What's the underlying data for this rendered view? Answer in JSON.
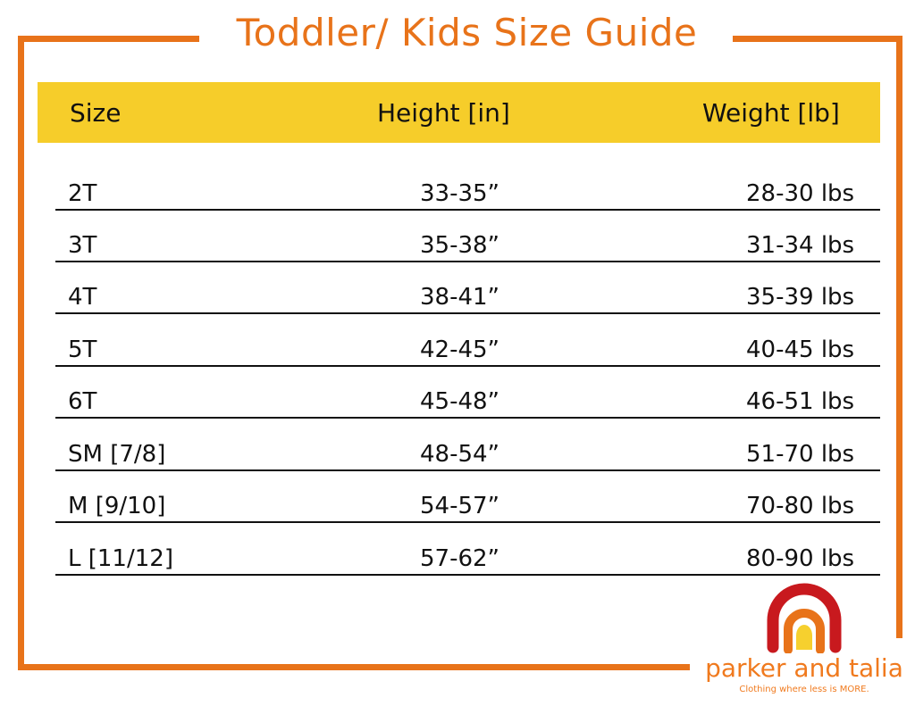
{
  "title": "Toddler/ Kids Size Guide",
  "header": {
    "size": "Size",
    "height": "Height [in]",
    "weight": "Weight [lb]"
  },
  "rows": [
    {
      "size": "2T",
      "height": "33-35”",
      "weight": "28-30 lbs"
    },
    {
      "size": "3T",
      "height": "35-38”",
      "weight": "31-34 lbs"
    },
    {
      "size": "4T",
      "height": "38-41”",
      "weight": "35-39 lbs"
    },
    {
      "size": "5T",
      "height": "42-45”",
      "weight": "40-45 lbs"
    },
    {
      "size": "6T",
      "height": "45-48”",
      "weight": "46-51 lbs"
    },
    {
      "size": "SM [7/8]",
      "height": "48-54”",
      "weight": "51-70 lbs"
    },
    {
      "size": "M [9/10]",
      "height": "54-57”",
      "weight": "70-80 lbs"
    },
    {
      "size": "L [11/12]",
      "height": "57-62”",
      "weight": "80-90 lbs"
    }
  ],
  "logo": {
    "brand": "parker and talia",
    "tagline": "Clothing where less is MORE."
  },
  "colors": {
    "frame": "#E8731A",
    "header_band": "#F6CD2A",
    "rainbow_outer": "#C8191E",
    "rainbow_inner": "#E8731A",
    "rainbow_center": "#F6D02E"
  }
}
